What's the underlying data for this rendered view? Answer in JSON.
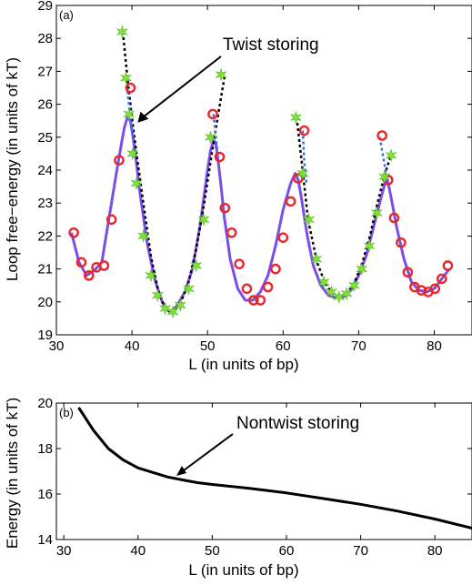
{
  "chart_data": [
    {
      "type": "line",
      "panel_label": "(a)",
      "xlabel": "L (in units of bp)",
      "ylabel": "Loop free−energy (in units of kT)",
      "xlim": [
        30,
        85
      ],
      "ylim": [
        19,
        29
      ],
      "xticks": [
        30,
        40,
        50,
        60,
        70,
        80
      ],
      "yticks": [
        19,
        20,
        21,
        22,
        23,
        24,
        25,
        26,
        27,
        28,
        29
      ],
      "annotation": "Twist storing",
      "annotation_target": [
        39.8,
        25.5
      ],
      "series": [
        {
          "kind": "line",
          "color": "#7b4ee6",
          "x": [
            32,
            33,
            34,
            35,
            36,
            37,
            38,
            38.6,
            39,
            39.4,
            39.8,
            40.2,
            40.6,
            41,
            41.5,
            42,
            43,
            44,
            44.5,
            45,
            45.5,
            46,
            47,
            48,
            49,
            50,
            50.4,
            50.8,
            51.1,
            51.4,
            51.8,
            52.2,
            53,
            54,
            55,
            56,
            57,
            58,
            59,
            60,
            61,
            61.6,
            62,
            62.4,
            62.8,
            63.2,
            64,
            65,
            66,
            67,
            68,
            69,
            70,
            71,
            72,
            73,
            73.5,
            73.8,
            74.1,
            74.6,
            75,
            76,
            77,
            78,
            79,
            80,
            81,
            82
          ],
          "y": [
            22.1,
            21.2,
            20.8,
            20.95,
            21.2,
            22.6,
            24.0,
            24.8,
            25.3,
            25.6,
            25.5,
            24.9,
            24.2,
            23.4,
            22.6,
            21.8,
            20.7,
            20.0,
            19.8,
            19.7,
            19.75,
            19.9,
            20.3,
            21.0,
            22.3,
            24.0,
            24.6,
            24.9,
            24.8,
            24.3,
            23.5,
            22.6,
            21.3,
            20.4,
            20.05,
            20.05,
            20.3,
            20.8,
            21.7,
            22.8,
            23.6,
            23.9,
            23.7,
            23.2,
            22.6,
            22.0,
            21.1,
            20.5,
            20.2,
            20.12,
            20.15,
            20.35,
            20.8,
            21.4,
            22.3,
            23.2,
            23.6,
            23.7,
            23.4,
            22.8,
            22.3,
            21.3,
            20.6,
            20.35,
            20.3,
            20.4,
            20.7,
            21.0
          ]
        },
        {
          "kind": "dashed",
          "color": "#000000",
          "segments": [
            {
              "x": [
                38.8,
                39.4,
                40,
                40.6,
                41.5,
                42.5,
                43.5,
                44.5,
                45.5,
                46.5,
                47.5,
                48.5,
                49.5,
                50.5,
                51.5,
                52.3
              ],
              "y": [
                28.2,
                26.8,
                25.6,
                24.5,
                23.0,
                21.4,
                20.3,
                19.75,
                19.7,
                20.0,
                20.6,
                21.6,
                22.9,
                24.4,
                25.8,
                26.9
              ]
            },
            {
              "x": [
                61.8,
                62.5,
                63.3,
                64.5,
                65.5,
                66.5,
                67.5,
                68.5,
                69.5,
                70.5,
                71.5,
                72.5,
                73.5,
                74.2
              ],
              "y": [
                25.6,
                24.2,
                22.5,
                21.2,
                20.6,
                20.25,
                20.15,
                20.3,
                20.6,
                21.2,
                22.0,
                23.0,
                23.9,
                24.4
              ]
            }
          ]
        },
        {
          "kind": "dashed",
          "color": "#3a6fe0",
          "segments": [
            {
              "x": [
                39.4,
                39.8,
                40.2
              ],
              "y": [
                26.4,
                25.6,
                25.0
              ]
            },
            {
              "x": [
                50.8,
                51.1,
                51.4
              ],
              "y": [
                25.7,
                25.0,
                24.4
              ]
            },
            {
              "x": [
                62.6,
                62.8,
                63.1
              ],
              "y": [
                25.2,
                24.3,
                23.6
              ]
            },
            {
              "x": [
                72.8,
                73.4,
                73.8
              ],
              "y": [
                25.0,
                24.2,
                23.7
              ]
            }
          ]
        },
        {
          "kind": "markers",
          "marker": "circle",
          "color": "#e8262b",
          "x": [
            32.3,
            33.3,
            34.3,
            35.3,
            36.3,
            37.3,
            38.3,
            39.8,
            50.7,
            51.6,
            52.3,
            53.2,
            54.2,
            55.2,
            56.1,
            57.0,
            58.0,
            59.0,
            60.0,
            61.0,
            62.0,
            62.8,
            73.1,
            73.9,
            74.7,
            75.6,
            76.5,
            77.4,
            78.3,
            79.2,
            80.1,
            81.0,
            81.8
          ],
          "y": [
            22.1,
            21.2,
            20.8,
            21.05,
            21.1,
            22.5,
            24.3,
            26.5,
            25.7,
            24.4,
            22.85,
            22.1,
            21.15,
            20.4,
            20.05,
            20.05,
            20.45,
            21.0,
            21.95,
            23.05,
            23.75,
            25.2,
            25.05,
            23.7,
            22.55,
            21.8,
            20.9,
            20.45,
            20.35,
            20.3,
            20.4,
            20.7,
            21.1
          ]
        },
        {
          "kind": "markers",
          "marker": "star",
          "color": "#7fe03a",
          "x": [
            38.7,
            39.2,
            39.6,
            40.1,
            40.6,
            41.5,
            42.5,
            43.4,
            44.4,
            45.4,
            46.4,
            47.5,
            48.5,
            49.5,
            50.4,
            51.8,
            61.7,
            62.6,
            63.4,
            64.4,
            65.4,
            66.4,
            67.4,
            68.4,
            69.4,
            70.4,
            71.4,
            72.4,
            73.4,
            74.3
          ],
          "y": [
            28.2,
            26.8,
            25.7,
            24.5,
            23.6,
            22.0,
            20.8,
            20.2,
            19.8,
            19.7,
            19.9,
            20.4,
            21.1,
            22.5,
            25.0,
            26.9,
            25.6,
            23.9,
            22.5,
            21.3,
            20.6,
            20.3,
            20.15,
            20.25,
            20.5,
            21.0,
            21.7,
            22.7,
            23.8,
            24.45
          ]
        }
      ]
    },
    {
      "type": "line",
      "panel_label": "(b)",
      "xlabel": "L (in units of bp)",
      "ylabel": "Energy (in units of kT)",
      "xlim": [
        29,
        85
      ],
      "ylim": [
        14,
        20
      ],
      "xticks": [
        30,
        40,
        50,
        60,
        70,
        80
      ],
      "yticks": [
        14,
        16,
        18,
        20
      ],
      "annotation": "Nontwist storing",
      "annotation_target": [
        46,
        16.6
      ],
      "series": [
        {
          "kind": "line",
          "color": "#000000",
          "x": [
            32,
            34,
            36,
            38,
            40,
            42,
            44,
            46,
            48,
            50,
            55,
            60,
            65,
            70,
            75,
            80,
            85
          ],
          "y": [
            19.8,
            18.8,
            18.0,
            17.5,
            17.15,
            16.95,
            16.75,
            16.62,
            16.5,
            16.42,
            16.25,
            16.05,
            15.8,
            15.55,
            15.25,
            14.9,
            14.5
          ]
        }
      ]
    }
  ]
}
